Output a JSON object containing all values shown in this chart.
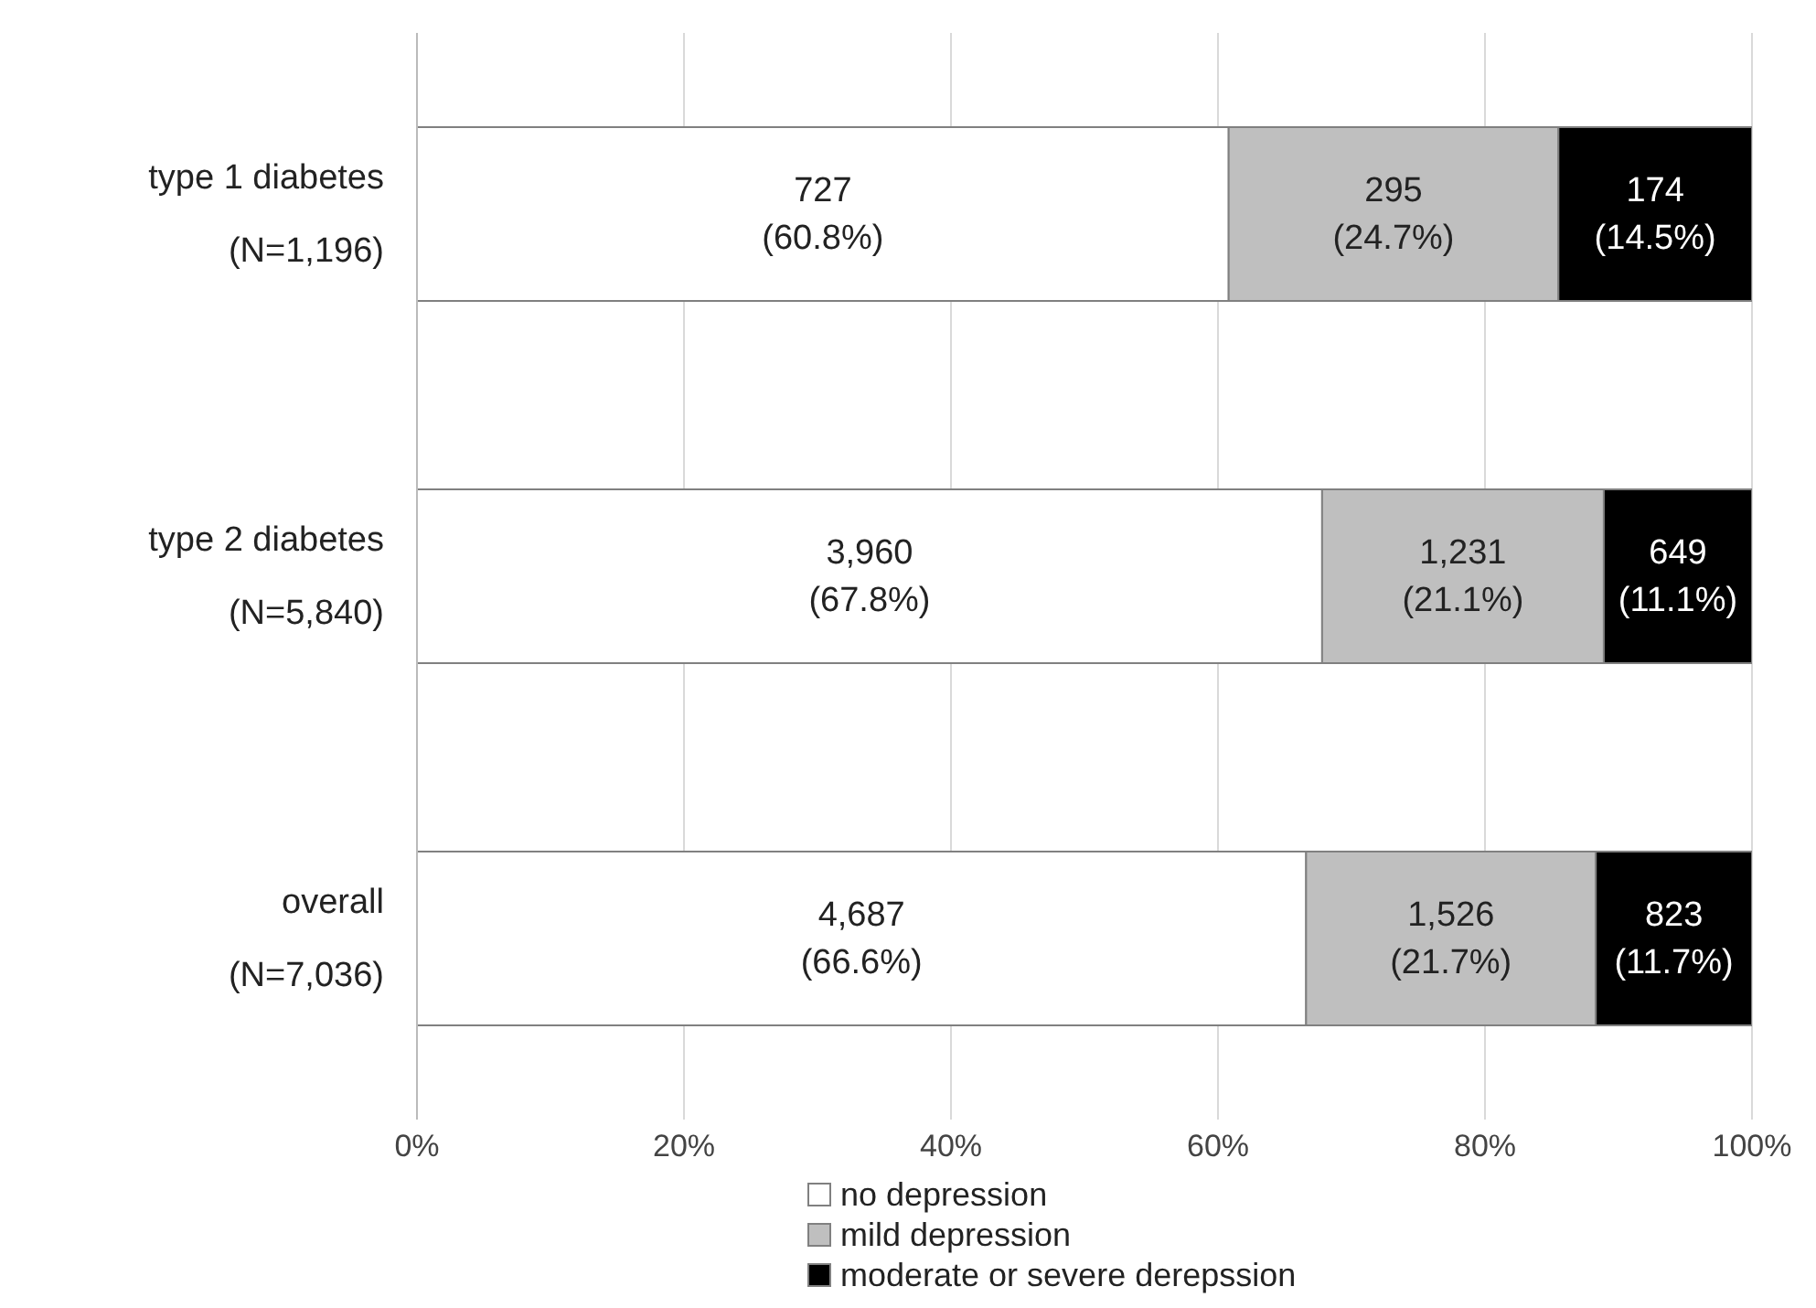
{
  "chart_data": {
    "type": "bar",
    "orientation": "horizontal",
    "stacked": true,
    "categories": [
      "type 1 diabetes\n(N=1,196)",
      "type 2 diabetes\n(N=5,840)",
      "overall\n(N=7,036)"
    ],
    "series": [
      {
        "name": "no depression",
        "color": "#ffffff",
        "values": [
          60.8,
          67.8,
          66.6
        ],
        "value_labels": [
          "727\n(60.8%)",
          "3,960\n(67.8%)",
          "4,687\n(66.6%)"
        ]
      },
      {
        "name": "mild depression",
        "color": "#bfbfbf",
        "values": [
          24.7,
          21.1,
          21.7
        ],
        "value_labels": [
          "295\n(24.7%)",
          "1,231\n(21.1%)",
          "1,526\n(21.7%)"
        ]
      },
      {
        "name": "moderate or severe derepssion",
        "color": "#000000",
        "values": [
          14.5,
          11.1,
          11.7
        ],
        "value_labels": [
          "174\n(14.5%)",
          "649\n(11.1%)",
          "823\n(11.7%)"
        ]
      }
    ],
    "xlim": [
      0,
      100
    ],
    "xticks": [
      {
        "value": 0,
        "label": "0%"
      },
      {
        "value": 20,
        "label": "20%"
      },
      {
        "value": 40,
        "label": "40%"
      },
      {
        "value": 60,
        "label": "60%"
      },
      {
        "value": 80,
        "label": "80%"
      },
      {
        "value": 100,
        "label": "100%"
      }
    ],
    "grid": "x",
    "legend": "bottom"
  }
}
